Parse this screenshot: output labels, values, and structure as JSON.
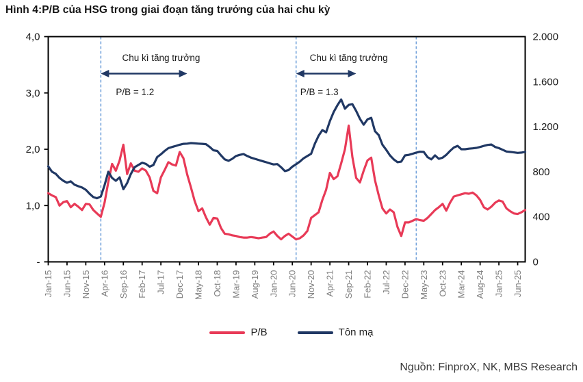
{
  "page": {
    "title": "Hình 4:P/B của HSG trong giai đoạn tăng trưởng của hai chu kỳ",
    "source": "Nguồn: FinproX, NK, MBS Research"
  },
  "chart_data": {
    "type": "line",
    "title": "Hình 4:P/B của HSG trong giai đoạn tăng trưởng của hai chu kỳ",
    "x_unit": "monthly",
    "x_start": "Jan-15",
    "x_end": "Aug-25",
    "x_tick_step_points": 5,
    "x_tick_labels": [
      "Jan-15",
      "Jun-15",
      "Nov-15",
      "Apr-16",
      "Sep-16",
      "Feb-17",
      "Jul-17",
      "Dec-17",
      "May-18",
      "Oct-18",
      "Mar-19",
      "Aug-19",
      "Jan-20",
      "Jun-20",
      "Nov-20",
      "Apr-21",
      "Sep-21",
      "Feb-22",
      "Jul-22",
      "Dec-22",
      "May-23",
      "Oct-23",
      "Mar-24",
      "Aug-24",
      "Jan-25",
      "Jun-25"
    ],
    "grid": false,
    "legend_position": "bottom",
    "axes": {
      "left": {
        "min": 0,
        "max": 4,
        "tick_labels": [
          "4,0",
          "3,0",
          "2,0",
          "1,0",
          "-"
        ],
        "series": "P/B"
      },
      "right": {
        "min": 0,
        "max": 2000,
        "tick_labels": [
          "2.000",
          "1.600",
          "1.200",
          "800",
          "400",
          "0"
        ],
        "series": "Tôn mạ"
      }
    },
    "series": [
      {
        "name": "P/B",
        "axis": "left",
        "color": "#E83A57",
        "values": [
          1.22,
          1.18,
          1.15,
          1.0,
          1.06,
          1.08,
          0.97,
          1.03,
          0.98,
          0.92,
          1.03,
          1.02,
          0.92,
          0.86,
          0.8,
          1.05,
          1.42,
          1.74,
          1.62,
          1.8,
          2.08,
          1.56,
          1.75,
          1.62,
          1.6,
          1.66,
          1.62,
          1.5,
          1.26,
          1.22,
          1.5,
          1.63,
          1.77,
          1.73,
          1.71,
          1.95,
          1.84,
          1.55,
          1.32,
          1.08,
          0.9,
          0.95,
          0.79,
          0.66,
          0.78,
          0.77,
          0.6,
          0.5,
          0.49,
          0.47,
          0.46,
          0.44,
          0.43,
          0.43,
          0.44,
          0.43,
          0.42,
          0.43,
          0.44,
          0.5,
          0.54,
          0.46,
          0.4,
          0.46,
          0.5,
          0.45,
          0.4,
          0.42,
          0.47,
          0.55,
          0.78,
          0.83,
          0.88,
          1.1,
          1.28,
          1.58,
          1.47,
          1.52,
          1.75,
          2.0,
          2.42,
          1.86,
          1.49,
          1.41,
          1.62,
          1.8,
          1.85,
          1.45,
          1.18,
          0.95,
          0.86,
          0.93,
          0.88,
          0.62,
          0.46,
          0.7,
          0.7,
          0.73,
          0.76,
          0.74,
          0.73,
          0.78,
          0.85,
          0.92,
          0.97,
          1.03,
          0.91,
          1.05,
          1.16,
          1.18,
          1.2,
          1.22,
          1.21,
          1.23,
          1.18,
          1.1,
          0.97,
          0.93,
          0.98,
          1.05,
          1.09,
          1.07,
          0.95,
          0.9,
          0.86,
          0.85,
          0.88,
          0.92
        ]
      },
      {
        "name": "Tôn mạ",
        "axis": "right",
        "color": "#203864",
        "values": [
          848,
          800,
          782,
          745,
          720,
          703,
          715,
          685,
          672,
          660,
          640,
          605,
          575,
          565,
          580,
          680,
          800,
          745,
          720,
          750,
          645,
          700,
          780,
          840,
          860,
          880,
          870,
          845,
          860,
          930,
          955,
          985,
          1010,
          1020,
          1030,
          1040,
          1048,
          1050,
          1055,
          1052,
          1050,
          1048,
          1045,
          1020,
          990,
          985,
          945,
          910,
          897,
          915,
          940,
          950,
          957,
          940,
          925,
          915,
          905,
          895,
          885,
          875,
          865,
          868,
          840,
          806,
          815,
          845,
          867,
          890,
          920,
          940,
          960,
          1050,
          1120,
          1170,
          1150,
          1250,
          1330,
          1390,
          1442,
          1360,
          1394,
          1400,
          1340,
          1270,
          1218,
          1265,
          1279,
          1160,
          1125,
          1040,
          995,
          945,
          910,
          885,
          890,
          945,
          950,
          960,
          970,
          978,
          976,
          930,
          910,
          945,
          915,
          925,
          950,
          985,
          1015,
          1030,
          1000,
          1000,
          1005,
          1008,
          1012,
          1020,
          1030,
          1038,
          1042,
          1020,
          1010,
          995,
          980,
          976,
          972,
          968,
          970,
          976
        ]
      }
    ],
    "annotations": [
      {
        "label": "Chu kì tăng trưởng",
        "sublabel": "P/B = 1.2",
        "arrow_from_point": 14,
        "arrow_to_point": 37
      },
      {
        "label": "Chu kì tăng trưởng",
        "sublabel": "P/B = 1.3",
        "arrow_from_point": 66,
        "arrow_to_point": 82
      }
    ],
    "dashed_vlines_at_points": [
      14,
      66,
      98
    ],
    "dashed_vline_color": "#74A3DB",
    "colors": {
      "axis_line": "#000000",
      "axis_label": "#1a1a1a",
      "x_label": "#7F7F7F",
      "annotation_text": "#1a1a1a"
    }
  }
}
